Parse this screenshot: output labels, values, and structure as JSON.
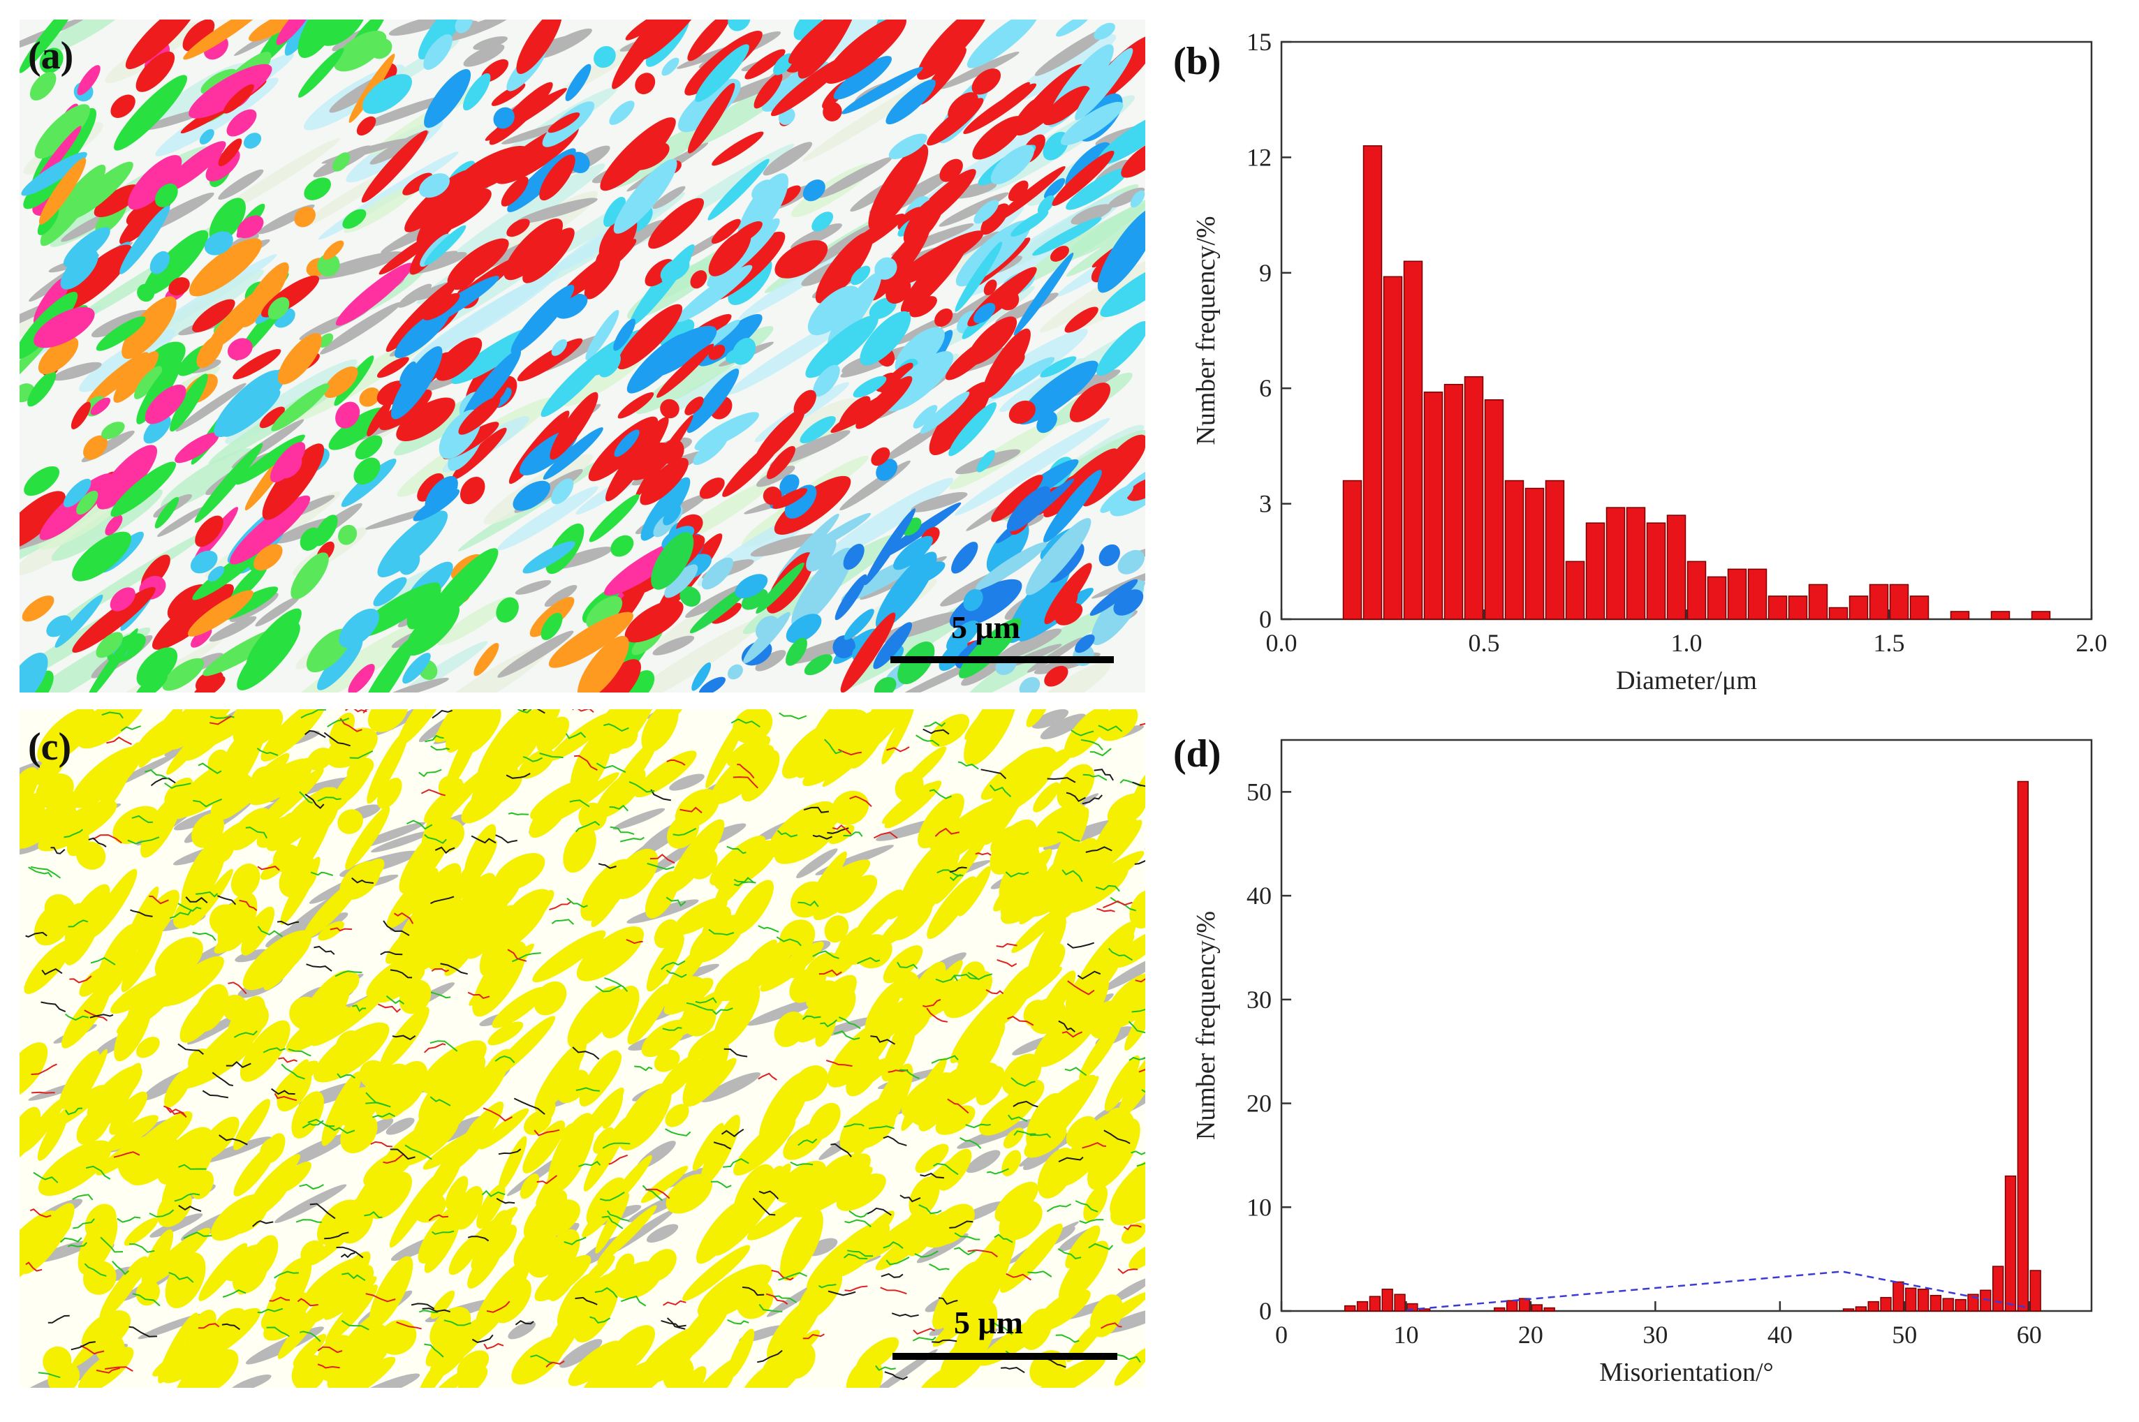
{
  "panels": {
    "a": {
      "label": "(a)",
      "scale_bar": "5 μm"
    },
    "b": {
      "label": "(b)"
    },
    "c": {
      "label": "(c)",
      "scale_bar": "5 μm"
    },
    "d": {
      "label": "(d)"
    }
  },
  "colors": {
    "bar_fill": "#e8141a",
    "bar_stroke": "#7a0000",
    "dashed_line": "#3a3ad6",
    "phase_yellow": "#f5ef00",
    "phase_gray": "#b8b8b8"
  },
  "chart_data": [
    {
      "id": "b",
      "type": "bar",
      "title": "",
      "xlabel": "Diameter/μm",
      "ylabel": "Number frequency/%",
      "xlim": [
        0.0,
        2.0
      ],
      "ylim": [
        0,
        15
      ],
      "xticks": [
        "0.0",
        "0.5",
        "1.0",
        "1.5",
        "2.0"
      ],
      "yticks": [
        "0",
        "3",
        "6",
        "9",
        "12",
        "15"
      ],
      "bin_width": 0.05,
      "x": [
        0.175,
        0.225,
        0.275,
        0.325,
        0.375,
        0.425,
        0.475,
        0.525,
        0.575,
        0.625,
        0.675,
        0.725,
        0.775,
        0.825,
        0.875,
        0.925,
        0.975,
        1.025,
        1.075,
        1.125,
        1.175,
        1.225,
        1.275,
        1.325,
        1.375,
        1.425,
        1.475,
        1.525,
        1.575,
        1.625,
        1.675,
        1.725,
        1.775,
        1.825,
        1.875,
        1.925
      ],
      "values": [
        3.6,
        12.3,
        8.9,
        9.3,
        5.9,
        6.1,
        6.3,
        5.7,
        3.6,
        3.4,
        3.6,
        1.5,
        2.5,
        2.9,
        2.9,
        2.5,
        2.7,
        1.5,
        1.1,
        1.3,
        1.3,
        0.6,
        0.6,
        0.9,
        0.3,
        0.6,
        0.9,
        0.9,
        0.6,
        0.0,
        0.2,
        0.0,
        0.2,
        0.0,
        0.2,
        0.0
      ]
    },
    {
      "id": "d",
      "type": "bar",
      "title": "",
      "xlabel": "Misorientation/°",
      "ylabel": "Number frequency/%",
      "xlim": [
        0,
        65
      ],
      "ylim": [
        0,
        55
      ],
      "xticks": [
        "0",
        "10",
        "20",
        "30",
        "40",
        "50",
        "60"
      ],
      "yticks": [
        "0",
        "10",
        "20",
        "30",
        "40",
        "50"
      ],
      "bin_width": 1,
      "x": [
        5.5,
        6.5,
        7.5,
        8.5,
        9.5,
        10.5,
        11.5,
        17.5,
        18.5,
        19.5,
        20.5,
        21.5,
        45.5,
        46.5,
        47.5,
        48.5,
        49.5,
        50.5,
        51.5,
        52.5,
        53.5,
        54.5,
        55.5,
        56.5,
        57.5,
        58.5,
        59.5,
        60.5
      ],
      "values": [
        0.5,
        0.9,
        1.4,
        2.1,
        1.6,
        0.7,
        0.2,
        0.3,
        1.0,
        1.2,
        0.6,
        0.3,
        0.2,
        0.4,
        0.9,
        1.3,
        2.8,
        2.2,
        2.1,
        1.5,
        1.2,
        1.1,
        1.6,
        2.0,
        4.3,
        13.0,
        51.0,
        3.9
      ],
      "reference_line": {
        "style": "dashed",
        "x": [
          10,
          45,
          60
        ],
        "y": [
          0.1,
          3.8,
          0.3
        ]
      }
    }
  ]
}
